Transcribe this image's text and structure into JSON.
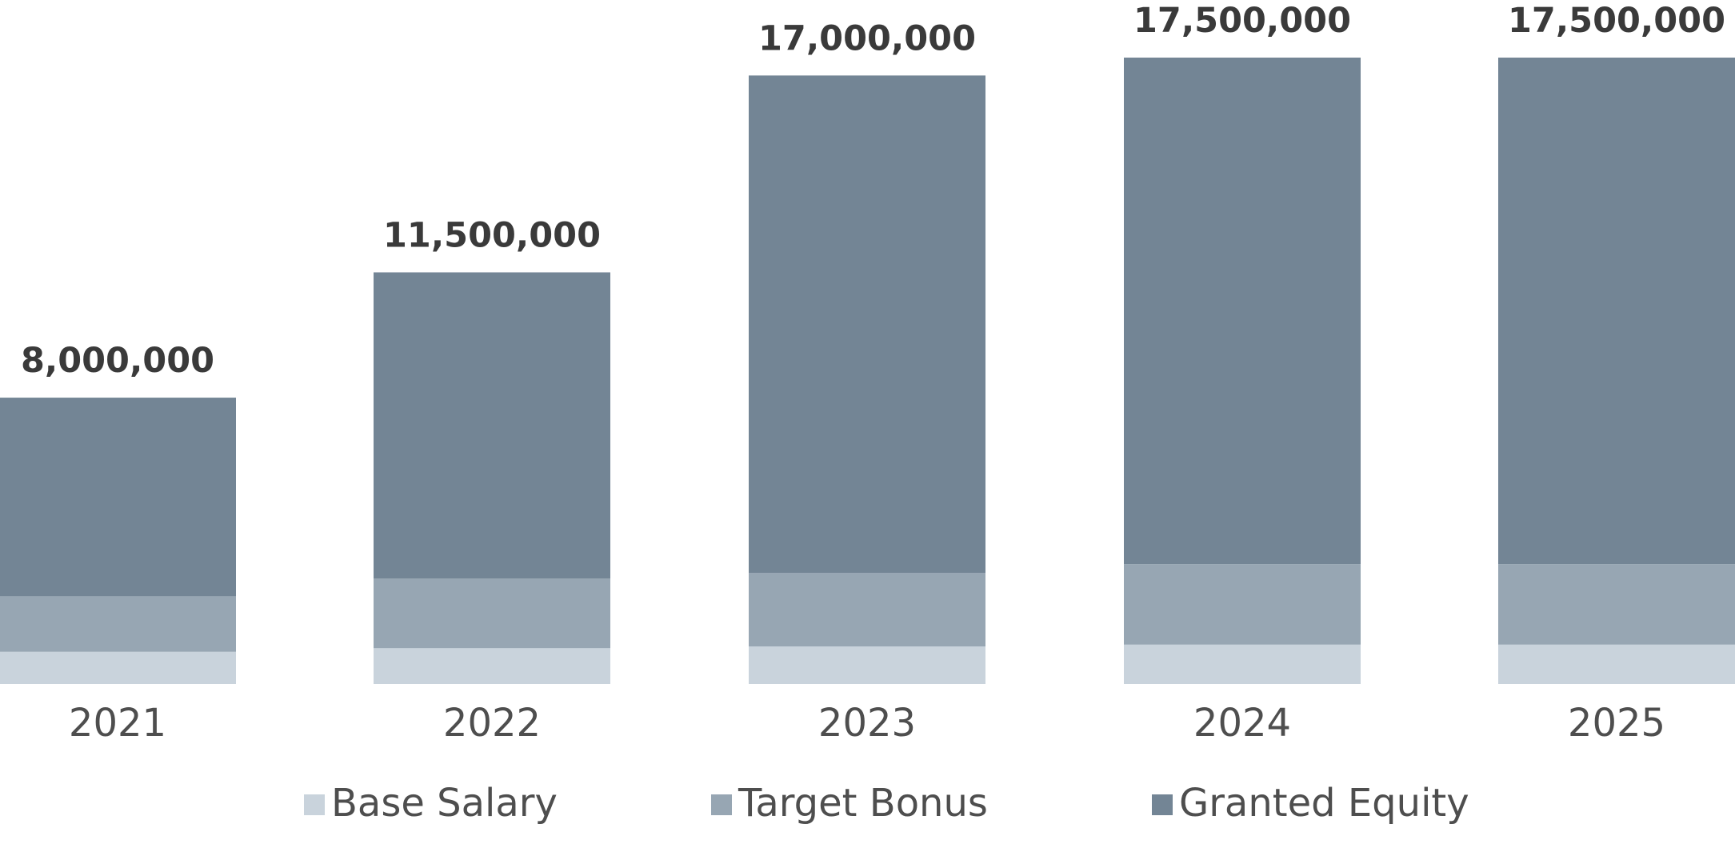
{
  "chart_data": {
    "type": "bar",
    "stacked": true,
    "categories": [
      "2021",
      "2022",
      "2023",
      "2024",
      "2025"
    ],
    "series": [
      {
        "name": "Base Salary",
        "color": "#c9d3dc",
        "values": [
          900000,
          1000000,
          1050000,
          1100000,
          1100000
        ]
      },
      {
        "name": "Target Bonus",
        "color": "#97a6b3",
        "values": [
          1550000,
          1950000,
          2050000,
          2250000,
          2250000
        ]
      },
      {
        "name": "Granted Equity",
        "color": "#738595",
        "values": [
          5550000,
          8550000,
          13900000,
          14150000,
          14150000
        ]
      }
    ],
    "totals": [
      "8,000,000",
      "11,500,000",
      "17,000,000",
      "17,500,000",
      "17,500,000"
    ],
    "ylim": [
      0,
      17500000
    ],
    "grid": false,
    "legend_position": "bottom-center",
    "title": "",
    "xlabel": "",
    "ylabel": ""
  }
}
